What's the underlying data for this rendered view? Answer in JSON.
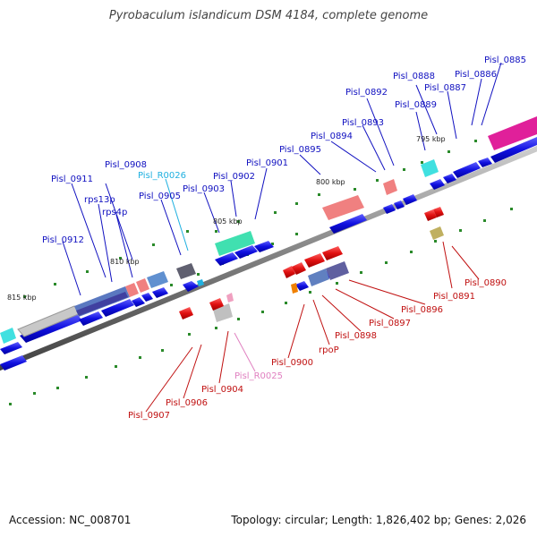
{
  "title": "Pyrobaculum islandicum DSM 4184, complete genome",
  "footer": {
    "accession": "Accession: NC_008701",
    "topology": "Topology: circular; Length: 1,826,402 bp; Genes: 2,026"
  },
  "kbp_marks": [
    "795 kbp",
    "800 kbp",
    "805 kbp",
    "810 kbp",
    "815 kbp"
  ],
  "labels_above": [
    "Pisl_0885",
    "Pisl_0886",
    "Pisl_0887",
    "Pisl_0888",
    "Pisl_0889",
    "Pisl_0892",
    "Pisl_0893",
    "Pisl_0894",
    "Pisl_0895",
    "Pisl_0901",
    "Pisl_0902",
    "Pisl_0903",
    "Pisl_0905",
    "Pisl_R0026",
    "Pisl_0908",
    "Pisl_0911",
    "rps13p",
    "rps4p",
    "Pisl_0912"
  ],
  "labels_below": [
    "Pisl_0890",
    "Pisl_0891",
    "Pisl_0896",
    "Pisl_0897",
    "Pisl_0898",
    "rpoP",
    "Pisl_0900",
    "Pisl_R0025",
    "Pisl_0904",
    "Pisl_0906",
    "Pisl_0907"
  ],
  "colors": {
    "forward_gene": "#1010e0",
    "reverse_gene": "#e01010",
    "backbone": "#808080",
    "tick": "#2a8a2a",
    "label_forward": "#1010c0",
    "label_reverse": "#c01010",
    "label_rna_forward": "#20b0e0",
    "label_rna_reverse": "#e080c0"
  }
}
